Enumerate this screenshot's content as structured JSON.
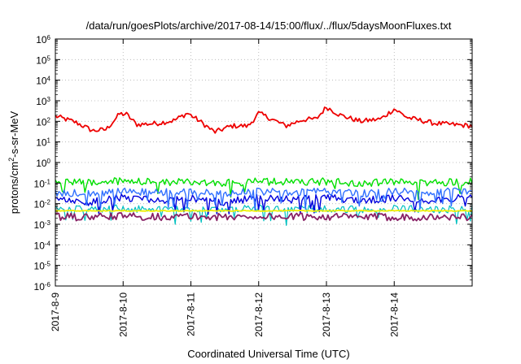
{
  "chart_data": {
    "type": "line",
    "title": "/data/run/goesPlots/archive/2017-08-14/15:00/flux/../flux/5daysMoonFluxes.txt",
    "xlabel": "Coordinated Universal Time (UTC)",
    "ylabel": {
      "base": "protons/cm",
      "sup": "2",
      "rest": "-s-sr-MeV"
    },
    "yscale": "log",
    "xlim": [
      0,
      6.15
    ],
    "ylim_exp": [
      -6,
      6
    ],
    "x_ticks": [
      {
        "x": 0,
        "label": "2017-8-9"
      },
      {
        "x": 1,
        "label": "2017-8-10"
      },
      {
        "x": 2,
        "label": "2017-8-11"
      },
      {
        "x": 3,
        "label": "2017-8-12"
      },
      {
        "x": 4,
        "label": "2017-8-13"
      },
      {
        "x": 5,
        "label": "2017-8-14"
      }
    ],
    "y_ticks": [
      {
        "exp": 6,
        "base": "10",
        "sup": "6"
      },
      {
        "exp": 5,
        "base": "10",
        "sup": "5"
      },
      {
        "exp": 4,
        "base": "10",
        "sup": "4"
      },
      {
        "exp": 3,
        "base": "10",
        "sup": "3"
      },
      {
        "exp": 2,
        "base": "10",
        "sup": "2"
      },
      {
        "exp": 1,
        "base": "10",
        "sup": "1"
      },
      {
        "exp": 0,
        "base": "10",
        "sup": "0"
      },
      {
        "exp": -1,
        "base": "10",
        "sup": "-1"
      },
      {
        "exp": -2,
        "base": "10",
        "sup": "-2"
      },
      {
        "exp": -3,
        "base": "10",
        "sup": "-3"
      },
      {
        "exp": -4,
        "base": "10",
        "sup": "-4"
      },
      {
        "exp": -5,
        "base": "10",
        "sup": "-5"
      },
      {
        "exp": -6,
        "base": "10",
        "sup": "-6"
      }
    ],
    "grid": true,
    "x_units": "days since 2017-08-09 00:00 UTC",
    "series": [
      {
        "color": "#ee0000",
        "width": 1.8,
        "x": [
          0,
          0.3,
          0.55,
          0.75,
          0.95,
          1.05,
          1.2,
          1.5,
          1.75,
          1.95,
          2.1,
          2.35,
          2.6,
          2.85,
          3.0,
          3.15,
          3.4,
          3.65,
          3.85,
          4.0,
          4.2,
          4.5,
          4.8,
          5.0,
          5.2,
          5.6,
          6.15
        ],
        "y": [
          180,
          90,
          35,
          40,
          230,
          220,
          70,
          80,
          110,
          250,
          120,
          30,
          60,
          60,
          250,
          150,
          60,
          120,
          130,
          500,
          200,
          100,
          130,
          400,
          150,
          80,
          60
        ]
      },
      {
        "color": "#00e000",
        "width": 1.4,
        "x": [
          0,
          0.5,
          1.0,
          1.5,
          2.0,
          2.5,
          3.0,
          3.5,
          4.0,
          4.5,
          5.0,
          5.5,
          6.15
        ],
        "y": [
          0.12,
          0.1,
          0.13,
          0.11,
          0.12,
          0.1,
          0.12,
          0.11,
          0.12,
          0.1,
          0.11,
          0.1,
          0.12
        ]
      },
      {
        "color": "#00c0c0",
        "width": 1.2,
        "x": [
          0,
          0.5,
          1.0,
          1.5,
          2.0,
          2.5,
          3.0,
          3.5,
          4.0,
          4.5,
          5.0,
          5.5,
          6.15
        ],
        "y": [
          0.006,
          0.005,
          0.006,
          0.005,
          0.006,
          0.005,
          0.006,
          0.005,
          0.006,
          0.005,
          0.006,
          0.005,
          0.006
        ]
      },
      {
        "color": "#0000dd",
        "width": 1.4,
        "x": [
          0,
          0.5,
          1.0,
          1.5,
          2.0,
          2.5,
          3.0,
          3.5,
          4.0,
          4.5,
          5.0,
          5.5,
          6.15
        ],
        "y": [
          0.015,
          0.012,
          0.02,
          0.015,
          0.018,
          0.012,
          0.02,
          0.016,
          0.02,
          0.014,
          0.018,
          0.015,
          0.02
        ]
      },
      {
        "color": "#3070ff",
        "width": 1.4,
        "x": [
          0,
          0.5,
          1.0,
          1.5,
          2.0,
          2.5,
          3.0,
          3.5,
          4.0,
          4.5,
          5.0,
          5.5,
          6.15
        ],
        "y": [
          0.035,
          0.03,
          0.04,
          0.035,
          0.04,
          0.03,
          0.04,
          0.035,
          0.04,
          0.03,
          0.04,
          0.035,
          0.045
        ]
      },
      {
        "color": "#f0f000",
        "width": 1.8,
        "x": [
          0,
          0.5,
          1.0,
          1.5,
          2.0,
          2.5,
          3.0,
          3.5,
          4.0,
          4.5,
          5.0,
          5.5,
          6.15
        ],
        "y": [
          0.0045,
          0.0045,
          0.0045,
          0.0045,
          0.0045,
          0.0045,
          0.0045,
          0.0045,
          0.0045,
          0.0045,
          0.0045,
          0.0045,
          0.0045
        ]
      },
      {
        "color": "#882266",
        "width": 1.8,
        "x": [
          0,
          0.5,
          1.0,
          1.5,
          2.0,
          2.5,
          3.0,
          3.5,
          4.0,
          4.5,
          5.0,
          5.5,
          6.15
        ],
        "y": [
          0.0023,
          0.0022,
          0.0025,
          0.0023,
          0.0024,
          0.0022,
          0.0024,
          0.0023,
          0.0024,
          0.0022,
          0.0023,
          0.0022,
          0.0023
        ]
      }
    ]
  }
}
